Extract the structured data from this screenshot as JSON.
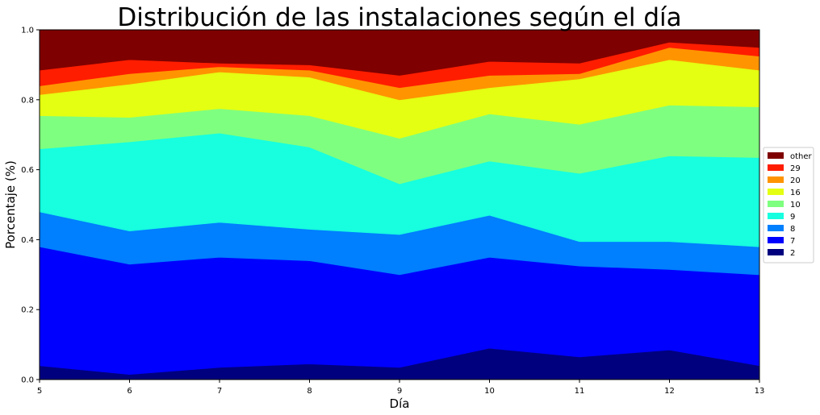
{
  "chart_data": {
    "type": "area",
    "stacked": true,
    "title": "Distribución de las instalaciones según el día",
    "xlabel": "Día",
    "ylabel": "Porcentaje (%)",
    "x": [
      5,
      6,
      7,
      8,
      9,
      10,
      11,
      12,
      13
    ],
    "xlim": [
      5,
      13
    ],
    "ylim": [
      0,
      1.0
    ],
    "x_ticks": [
      "5",
      "6",
      "7",
      "8",
      "9",
      "10",
      "11",
      "12",
      "13"
    ],
    "y_ticks": [
      "0.0",
      "0.2",
      "0.4",
      "0.6",
      "0.8",
      "1.0"
    ],
    "grid": false,
    "legend_position": "right",
    "series": [
      {
        "name": "2",
        "color": "#00007f",
        "values": [
          0.04,
          0.015,
          0.035,
          0.045,
          0.035,
          0.09,
          0.065,
          0.085,
          0.04
        ]
      },
      {
        "name": "7",
        "color": "#0000ff",
        "values": [
          0.34,
          0.315,
          0.315,
          0.295,
          0.265,
          0.26,
          0.26,
          0.23,
          0.26
        ]
      },
      {
        "name": "8",
        "color": "#007fff",
        "values": [
          0.1,
          0.095,
          0.1,
          0.09,
          0.115,
          0.12,
          0.07,
          0.08,
          0.08
        ]
      },
      {
        "name": "9",
        "color": "#17ffdf",
        "values": [
          0.18,
          0.255,
          0.255,
          0.235,
          0.145,
          0.155,
          0.195,
          0.245,
          0.255
        ]
      },
      {
        "name": "10",
        "color": "#7fff7f",
        "values": [
          0.095,
          0.07,
          0.07,
          0.09,
          0.13,
          0.135,
          0.14,
          0.145,
          0.145
        ]
      },
      {
        "name": "16",
        "color": "#e4ff12",
        "values": [
          0.06,
          0.095,
          0.105,
          0.11,
          0.11,
          0.075,
          0.13,
          0.13,
          0.105
        ]
      },
      {
        "name": "20",
        "color": "#ff9400",
        "values": [
          0.025,
          0.03,
          0.015,
          0.02,
          0.035,
          0.035,
          0.015,
          0.035,
          0.04
        ]
      },
      {
        "name": "29",
        "color": "#ff1d00",
        "values": [
          0.045,
          0.04,
          0.01,
          0.015,
          0.035,
          0.04,
          0.03,
          0.015,
          0.025
        ]
      },
      {
        "name": "other",
        "color": "#7f0000",
        "values": [
          0.115,
          0.085,
          0.095,
          0.1,
          0.13,
          0.09,
          0.095,
          0.035,
          0.05
        ]
      }
    ]
  }
}
